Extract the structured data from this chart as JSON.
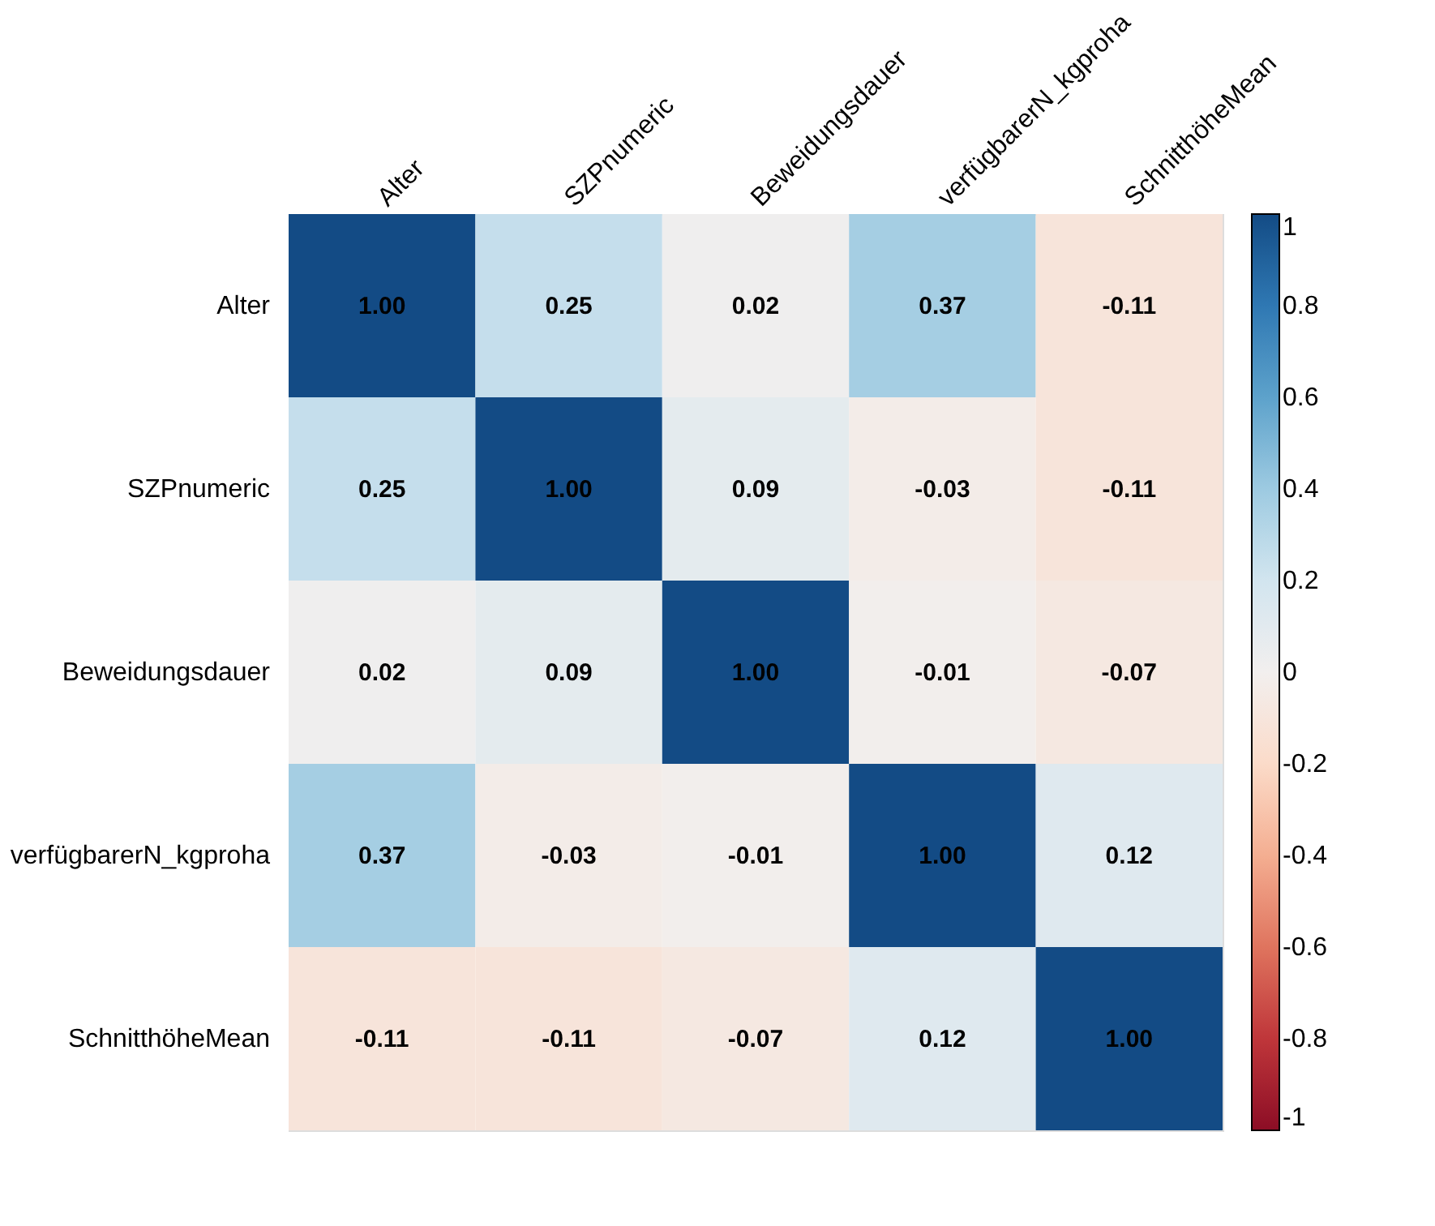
{
  "chart_data": {
    "type": "heatmap",
    "categories": [
      "Alter",
      "SZPnumeric",
      "Beweidungsdauer",
      "verfügbarerN_kgproha",
      "SchnitthöheMean"
    ],
    "y_categories": [
      "Alter",
      "SZPnumeric",
      "Beweidungsdauer",
      "verfügbarerN_kgproha",
      "SchnitthöheMean"
    ],
    "cells": [
      [
        1.0,
        0.25,
        0.02,
        0.37,
        -0.11
      ],
      [
        0.25,
        1.0,
        0.09,
        -0.03,
        -0.11
      ],
      [
        0.02,
        0.09,
        1.0,
        -0.01,
        -0.07
      ],
      [
        0.37,
        -0.03,
        -0.01,
        1.0,
        0.12
      ],
      [
        -0.11,
        -0.11,
        -0.07,
        0.12,
        1.0
      ]
    ],
    "cell_labels": [
      [
        "1.00",
        "0.25",
        "0.02",
        "0.37",
        "-0.11"
      ],
      [
        "0.25",
        "1.00",
        "0.09",
        "-0.03",
        "-0.11"
      ],
      [
        "0.02",
        "0.09",
        "1.00",
        "-0.01",
        "-0.07"
      ],
      [
        "0.37",
        "-0.03",
        "-0.01",
        "1.00",
        "0.12"
      ],
      [
        "-0.11",
        "-0.11",
        "-0.07",
        "0.12",
        "1.00"
      ]
    ],
    "clim": [
      -1,
      1
    ],
    "cticks": [
      1,
      0.8,
      0.6,
      0.4,
      0.2,
      0,
      -0.2,
      -0.4,
      -0.6,
      -0.8,
      -1
    ]
  }
}
